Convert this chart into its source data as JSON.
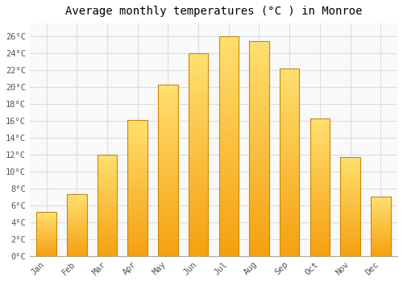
{
  "title": "Average monthly temperatures (°C ) in Monroe",
  "months": [
    "Jan",
    "Feb",
    "Mar",
    "Apr",
    "May",
    "Jun",
    "Jul",
    "Aug",
    "Sep",
    "Oct",
    "Nov",
    "Dec"
  ],
  "values": [
    5.2,
    7.3,
    12.0,
    16.1,
    20.3,
    24.0,
    26.0,
    25.4,
    22.2,
    16.3,
    11.7,
    7.0
  ],
  "bar_color_center": "#FFB833",
  "bar_color_edge_left": "#E8900A",
  "bar_color_top": "#FFD966",
  "bar_color_bottom": "#F5A623",
  "bar_outline_color": "#CC8800",
  "ylim": [
    0,
    27.5
  ],
  "yticks": [
    0,
    2,
    4,
    6,
    8,
    10,
    12,
    14,
    16,
    18,
    20,
    22,
    24,
    26
  ],
  "ytick_labels": [
    "0°C",
    "2°C",
    "4°C",
    "6°C",
    "8°C",
    "10°C",
    "12°C",
    "14°C",
    "16°C",
    "18°C",
    "20°C",
    "22°C",
    "24°C",
    "26°C"
  ],
  "background_color": "#ffffff",
  "plot_bg_color": "#f9f9f9",
  "grid_color": "#dddddd",
  "title_fontsize": 10,
  "tick_fontsize": 7.5,
  "bar_width": 0.65,
  "font_family": "monospace"
}
